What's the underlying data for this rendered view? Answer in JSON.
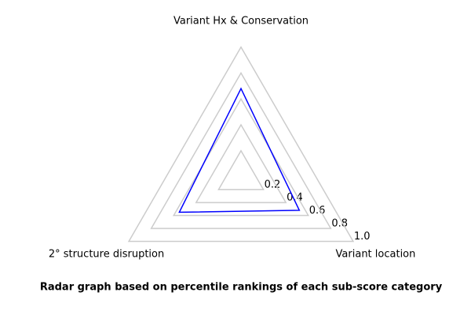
{
  "chart_data": {
    "type": "radar",
    "title": "Radar graph based on percentile rankings of each sub-score category",
    "categories": [
      "Variant Hx & Conservation",
      "2° structure disruption",
      "Variant location"
    ],
    "series": [
      {
        "color": "#0000ff",
        "values": [
          0.68,
          0.55,
          0.52
        ]
      }
    ],
    "rlim": [
      0,
      1
    ],
    "rticks": [
      0.2,
      0.4,
      0.6,
      0.8,
      {
        "value": 1.0,
        "label": "1.0"
      }
    ],
    "grid_color": "#cccccc"
  }
}
